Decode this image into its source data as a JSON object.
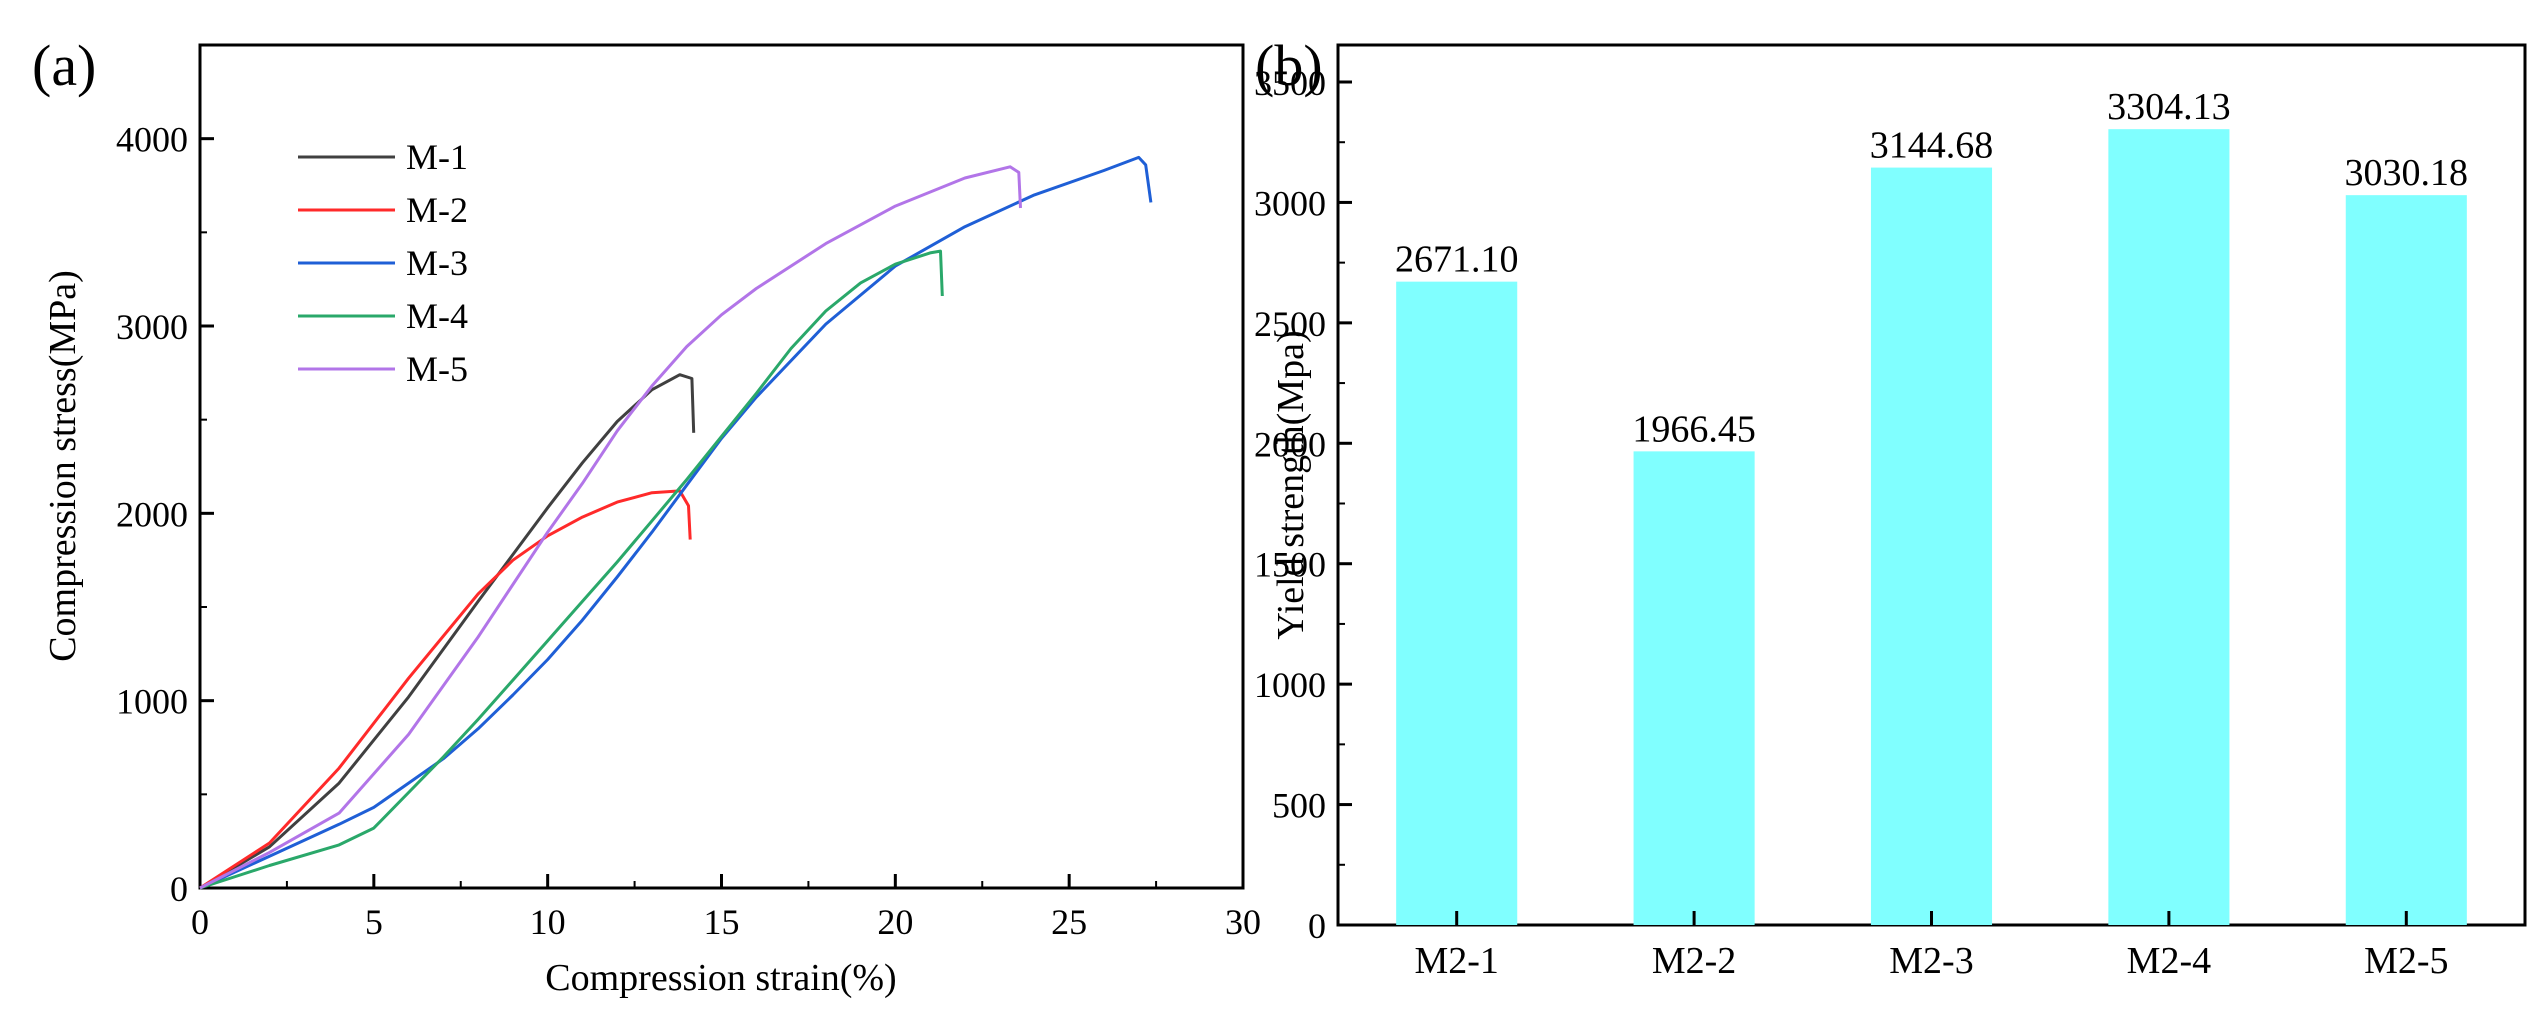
{
  "panel_a": {
    "label": "(a)",
    "chart_data": {
      "type": "line",
      "title": "",
      "xlabel": "Compression strain(%)",
      "ylabel": "Compression stress(MPa)",
      "xlim": [
        0,
        30
      ],
      "ylim": [
        0,
        4500
      ],
      "xticks": [
        0,
        5,
        10,
        15,
        20,
        25,
        30
      ],
      "yticks": [
        0,
        1000,
        2000,
        3000,
        4000
      ],
      "grid": false,
      "legend": "top-left",
      "series": [
        {
          "name": "M-1",
          "color": "#404040",
          "x": [
            0,
            2,
            4,
            6,
            8,
            10,
            11,
            12,
            13,
            13.8,
            14.15,
            14.2
          ],
          "y": [
            0,
            220,
            560,
            1020,
            1530,
            2030,
            2270,
            2490,
            2660,
            2740,
            2720,
            2430
          ]
        },
        {
          "name": "M-2",
          "color": "#ff2a2a",
          "x": [
            0,
            2,
            4,
            6,
            8,
            9,
            10,
            11,
            12,
            13,
            13.8,
            14.05,
            14.1
          ],
          "y": [
            0,
            240,
            640,
            1120,
            1570,
            1750,
            1880,
            1980,
            2060,
            2110,
            2120,
            2040,
            1860
          ]
        },
        {
          "name": "M-3",
          "color": "#1f5fd6",
          "x": [
            0,
            2,
            4,
            5,
            6,
            7,
            8,
            9,
            10,
            11,
            12,
            13,
            14,
            15,
            16,
            18,
            20,
            22,
            24,
            26,
            27,
            27.2,
            27.35
          ],
          "y": [
            0,
            170,
            340,
            430,
            560,
            690,
            850,
            1030,
            1220,
            1430,
            1660,
            1900,
            2150,
            2400,
            2620,
            3010,
            3320,
            3530,
            3700,
            3830,
            3900,
            3860,
            3660
          ]
        },
        {
          "name": "M-4",
          "color": "#2aa86a",
          "x": [
            0,
            2,
            4,
            5,
            6,
            7,
            8,
            9,
            10,
            11,
            12,
            13,
            14,
            15,
            16,
            17,
            18,
            19,
            20,
            21,
            21.3,
            21.35
          ],
          "y": [
            0,
            120,
            230,
            320,
            510,
            700,
            900,
            1110,
            1320,
            1530,
            1740,
            1960,
            2180,
            2410,
            2640,
            2880,
            3080,
            3230,
            3330,
            3390,
            3400,
            3160
          ]
        },
        {
          "name": "M-5",
          "color": "#b275e8",
          "x": [
            0,
            2,
            4,
            6,
            8,
            9,
            10,
            11,
            12,
            13,
            14,
            15,
            16,
            18,
            20,
            22,
            23.3,
            23.55,
            23.6
          ],
          "y": [
            0,
            190,
            400,
            820,
            1340,
            1620,
            1900,
            2160,
            2440,
            2680,
            2890,
            3060,
            3200,
            3440,
            3640,
            3790,
            3850,
            3820,
            3630
          ]
        }
      ]
    }
  },
  "panel_b": {
    "label": "(b)",
    "chart_data": {
      "type": "bar",
      "title": "",
      "xlabel": "",
      "ylabel": "Yield strength(Mpa)",
      "ylim": [
        0,
        3500
      ],
      "yticks": [
        0,
        500,
        1000,
        1500,
        2000,
        2500,
        3000,
        3500
      ],
      "grid": false,
      "bar_color": "#80ffff",
      "categories": [
        "M2-1",
        "M2-2",
        "M2-3",
        "M2-4",
        "M2-5"
      ],
      "values": [
        2671.1,
        1966.45,
        3144.68,
        3304.13,
        3030.18
      ],
      "data_labels": [
        "2671.10",
        "1966.45",
        "3144.68",
        "3304.13",
        "3030.18"
      ]
    }
  }
}
